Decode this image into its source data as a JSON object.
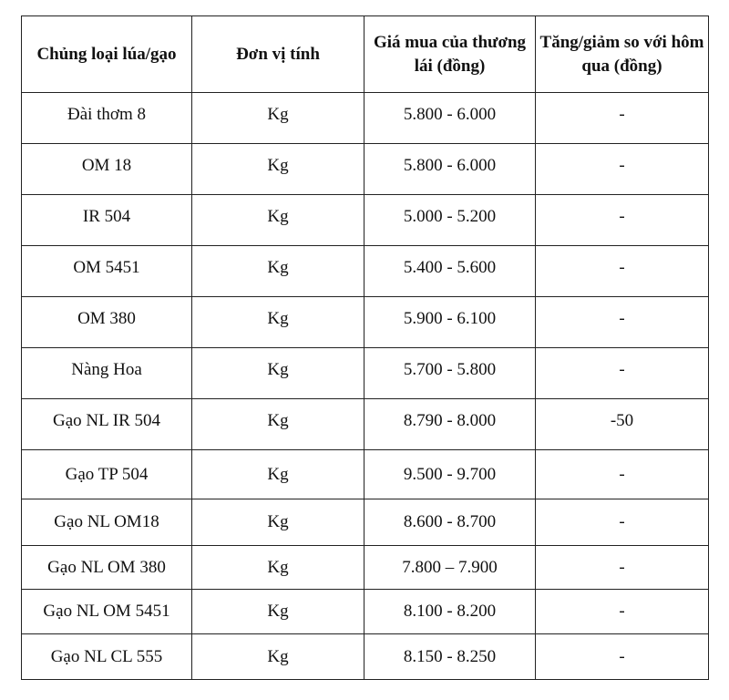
{
  "table": {
    "headers": [
      "Chủng loại lúa/gạo",
      "Đơn vị tính",
      "Giá mua của thương lái (đồng)",
      "Tăng/giảm so với hôm qua (đồng)"
    ],
    "rows": [
      [
        "Đài thơm 8",
        "Kg",
        "5.800 - 6.000",
        "-"
      ],
      [
        "OM 18",
        "Kg",
        "5.800 - 6.000",
        "-"
      ],
      [
        "IR 504",
        "Kg",
        "5.000 - 5.200",
        "-"
      ],
      [
        "OM 5451",
        "Kg",
        "5.400 - 5.600",
        "-"
      ],
      [
        "OM 380",
        "Kg",
        "5.900 - 6.100",
        "-"
      ],
      [
        "Nàng Hoa",
        "Kg",
        "5.700 - 5.800",
        "-"
      ],
      [
        "Gạo NL IR 504",
        "Kg",
        "8.790 - 8.000",
        "-50"
      ],
      [
        "Gạo TP 504",
        "Kg",
        "9.500 - 9.700",
        "-"
      ],
      [
        "Gạo NL OM18",
        "Kg",
        "8.600 - 8.700",
        "-"
      ],
      [
        "Gạo NL OM 380",
        "Kg",
        "7.800 – 7.900",
        "-"
      ],
      [
        "Gạo NL OM 5451",
        "Kg",
        "8.100 - 8.200",
        "-"
      ],
      [
        "Gạo NL CL 555",
        "Kg",
        "8.150 - 8.250",
        "-"
      ]
    ]
  }
}
